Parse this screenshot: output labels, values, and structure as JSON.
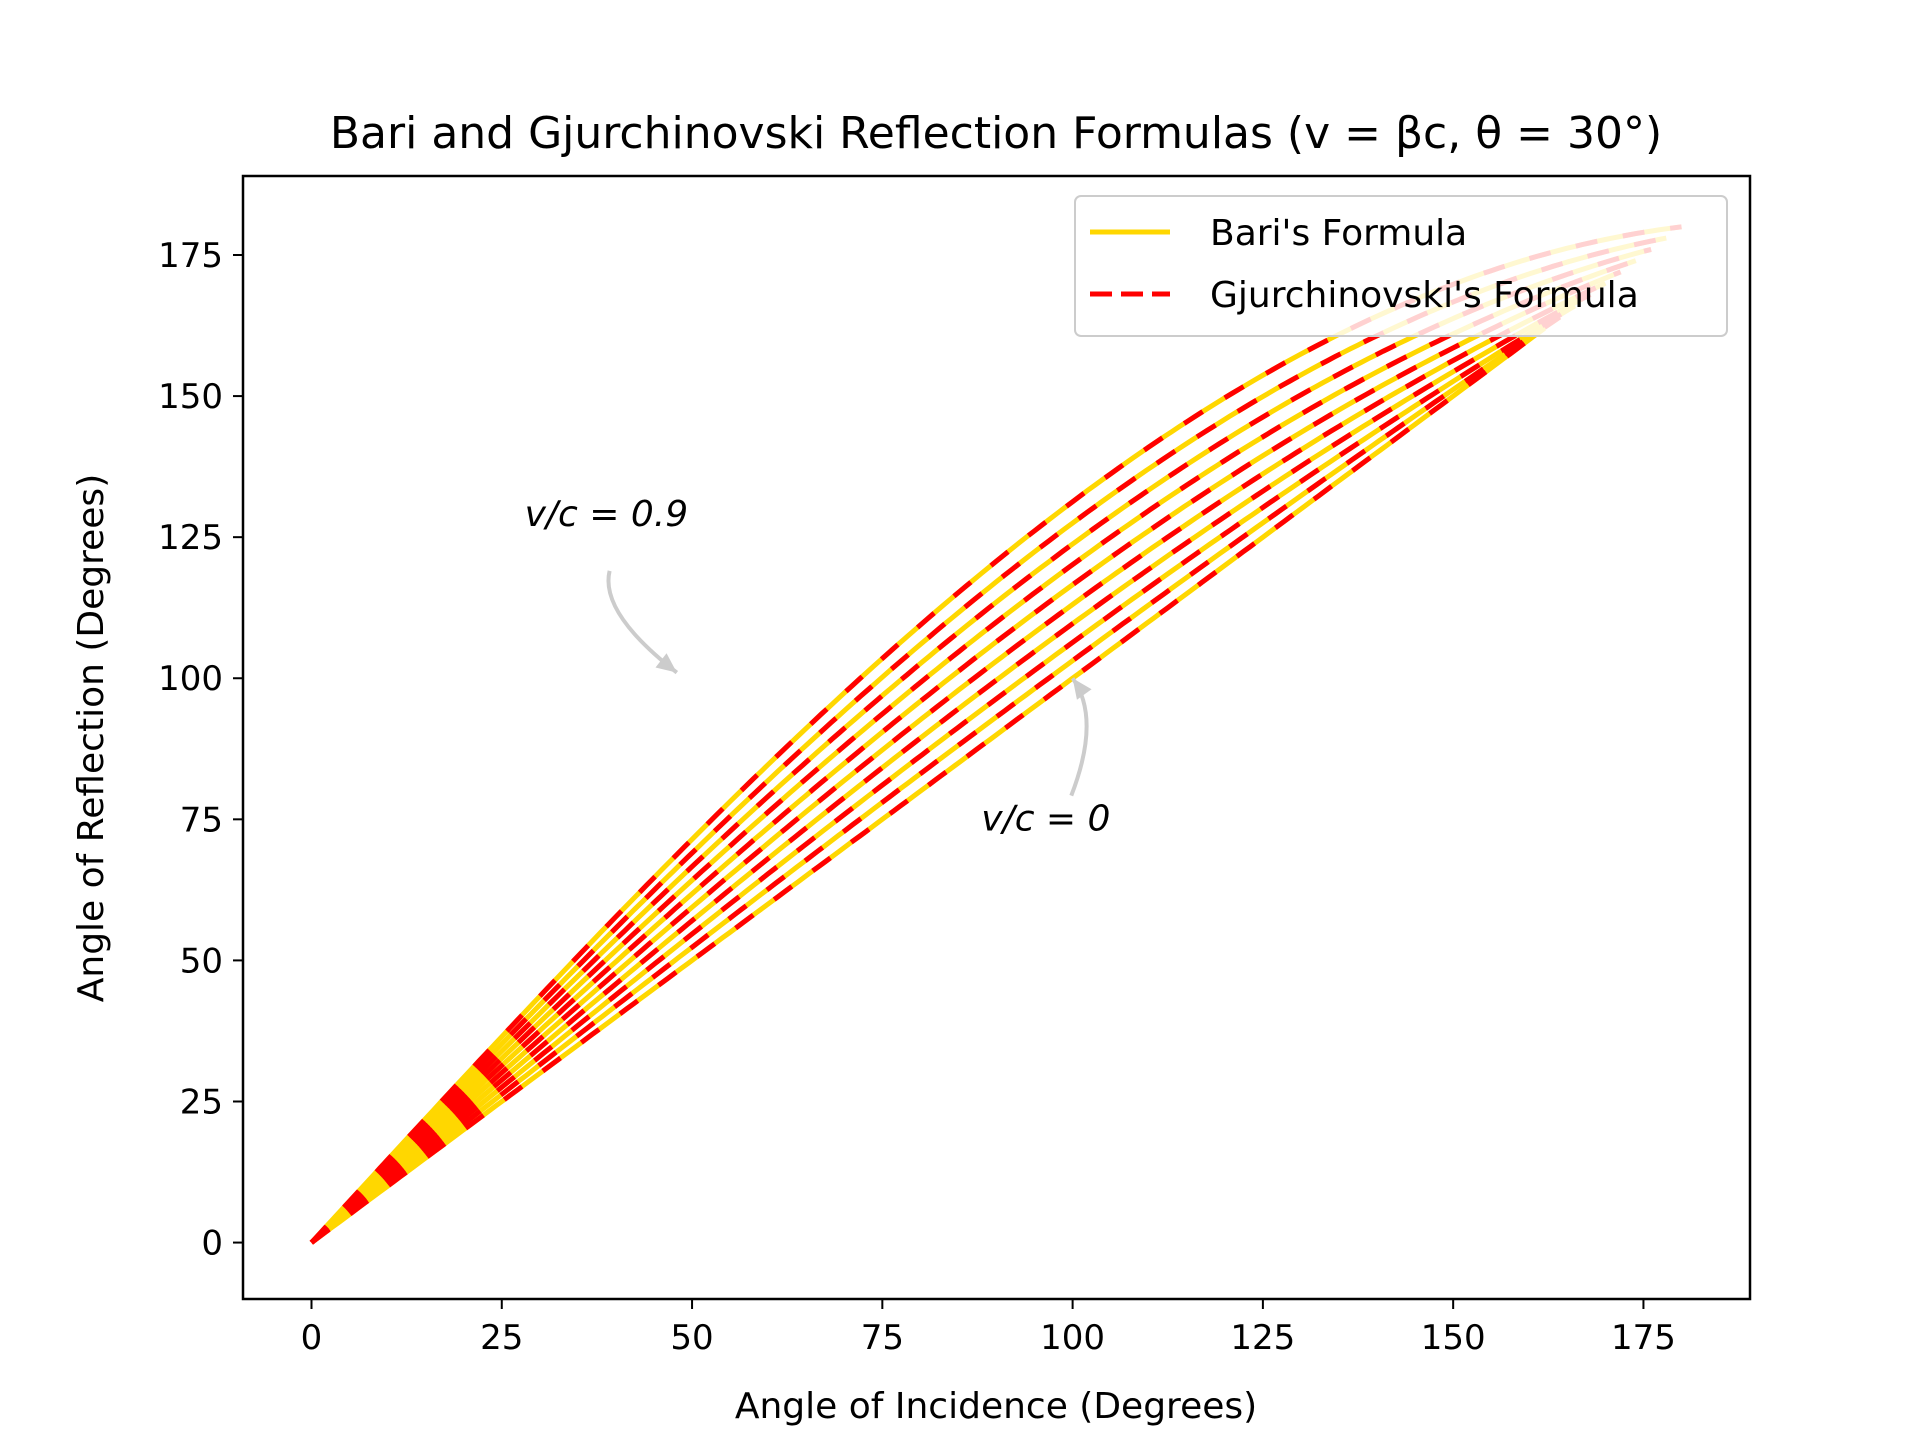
{
  "chart_data": {
    "type": "line",
    "title": "Bari and Gjurchinovski Reflection Formulas (v = βc, θ = 30°)",
    "xlabel": "Angle of Incidence (Degrees)",
    "ylabel": "Angle of Reflection (Degrees)",
    "xlim": [
      -9,
      189
    ],
    "ylim": [
      -10,
      189
    ],
    "xticks": [
      0,
      25,
      50,
      75,
      100,
      125,
      150,
      175
    ],
    "yticks": [
      0,
      25,
      50,
      75,
      100,
      125,
      150,
      175
    ],
    "grid": false,
    "legend": {
      "placement": "top-right",
      "entries": [
        {
          "label": "Bari's Formula",
          "color": "#FFD700",
          "style": "solid"
        },
        {
          "label": "Gjurchinovski's Formula",
          "color": "#FF0000",
          "style": "dashed"
        }
      ]
    },
    "annotations": [
      {
        "text": "v/c = 0.9",
        "point": [
          48,
          101
        ],
        "text_pos": [
          28,
          127
        ]
      },
      {
        "text": "v/c = 0",
        "point": [
          100,
          100
        ],
        "text_pos": [
          88,
          73
        ]
      }
    ],
    "beta_values": [
      0,
      0.1,
      0.2,
      0.3,
      0.4,
      0.5,
      0.6,
      0.7,
      0.8,
      0.9
    ],
    "angle_range": [
      0,
      180
    ],
    "colors": {
      "bari": "#FFD700",
      "gjurchinovski": "#FF0000",
      "annotation_arrow": "#CCCCCC"
    }
  }
}
